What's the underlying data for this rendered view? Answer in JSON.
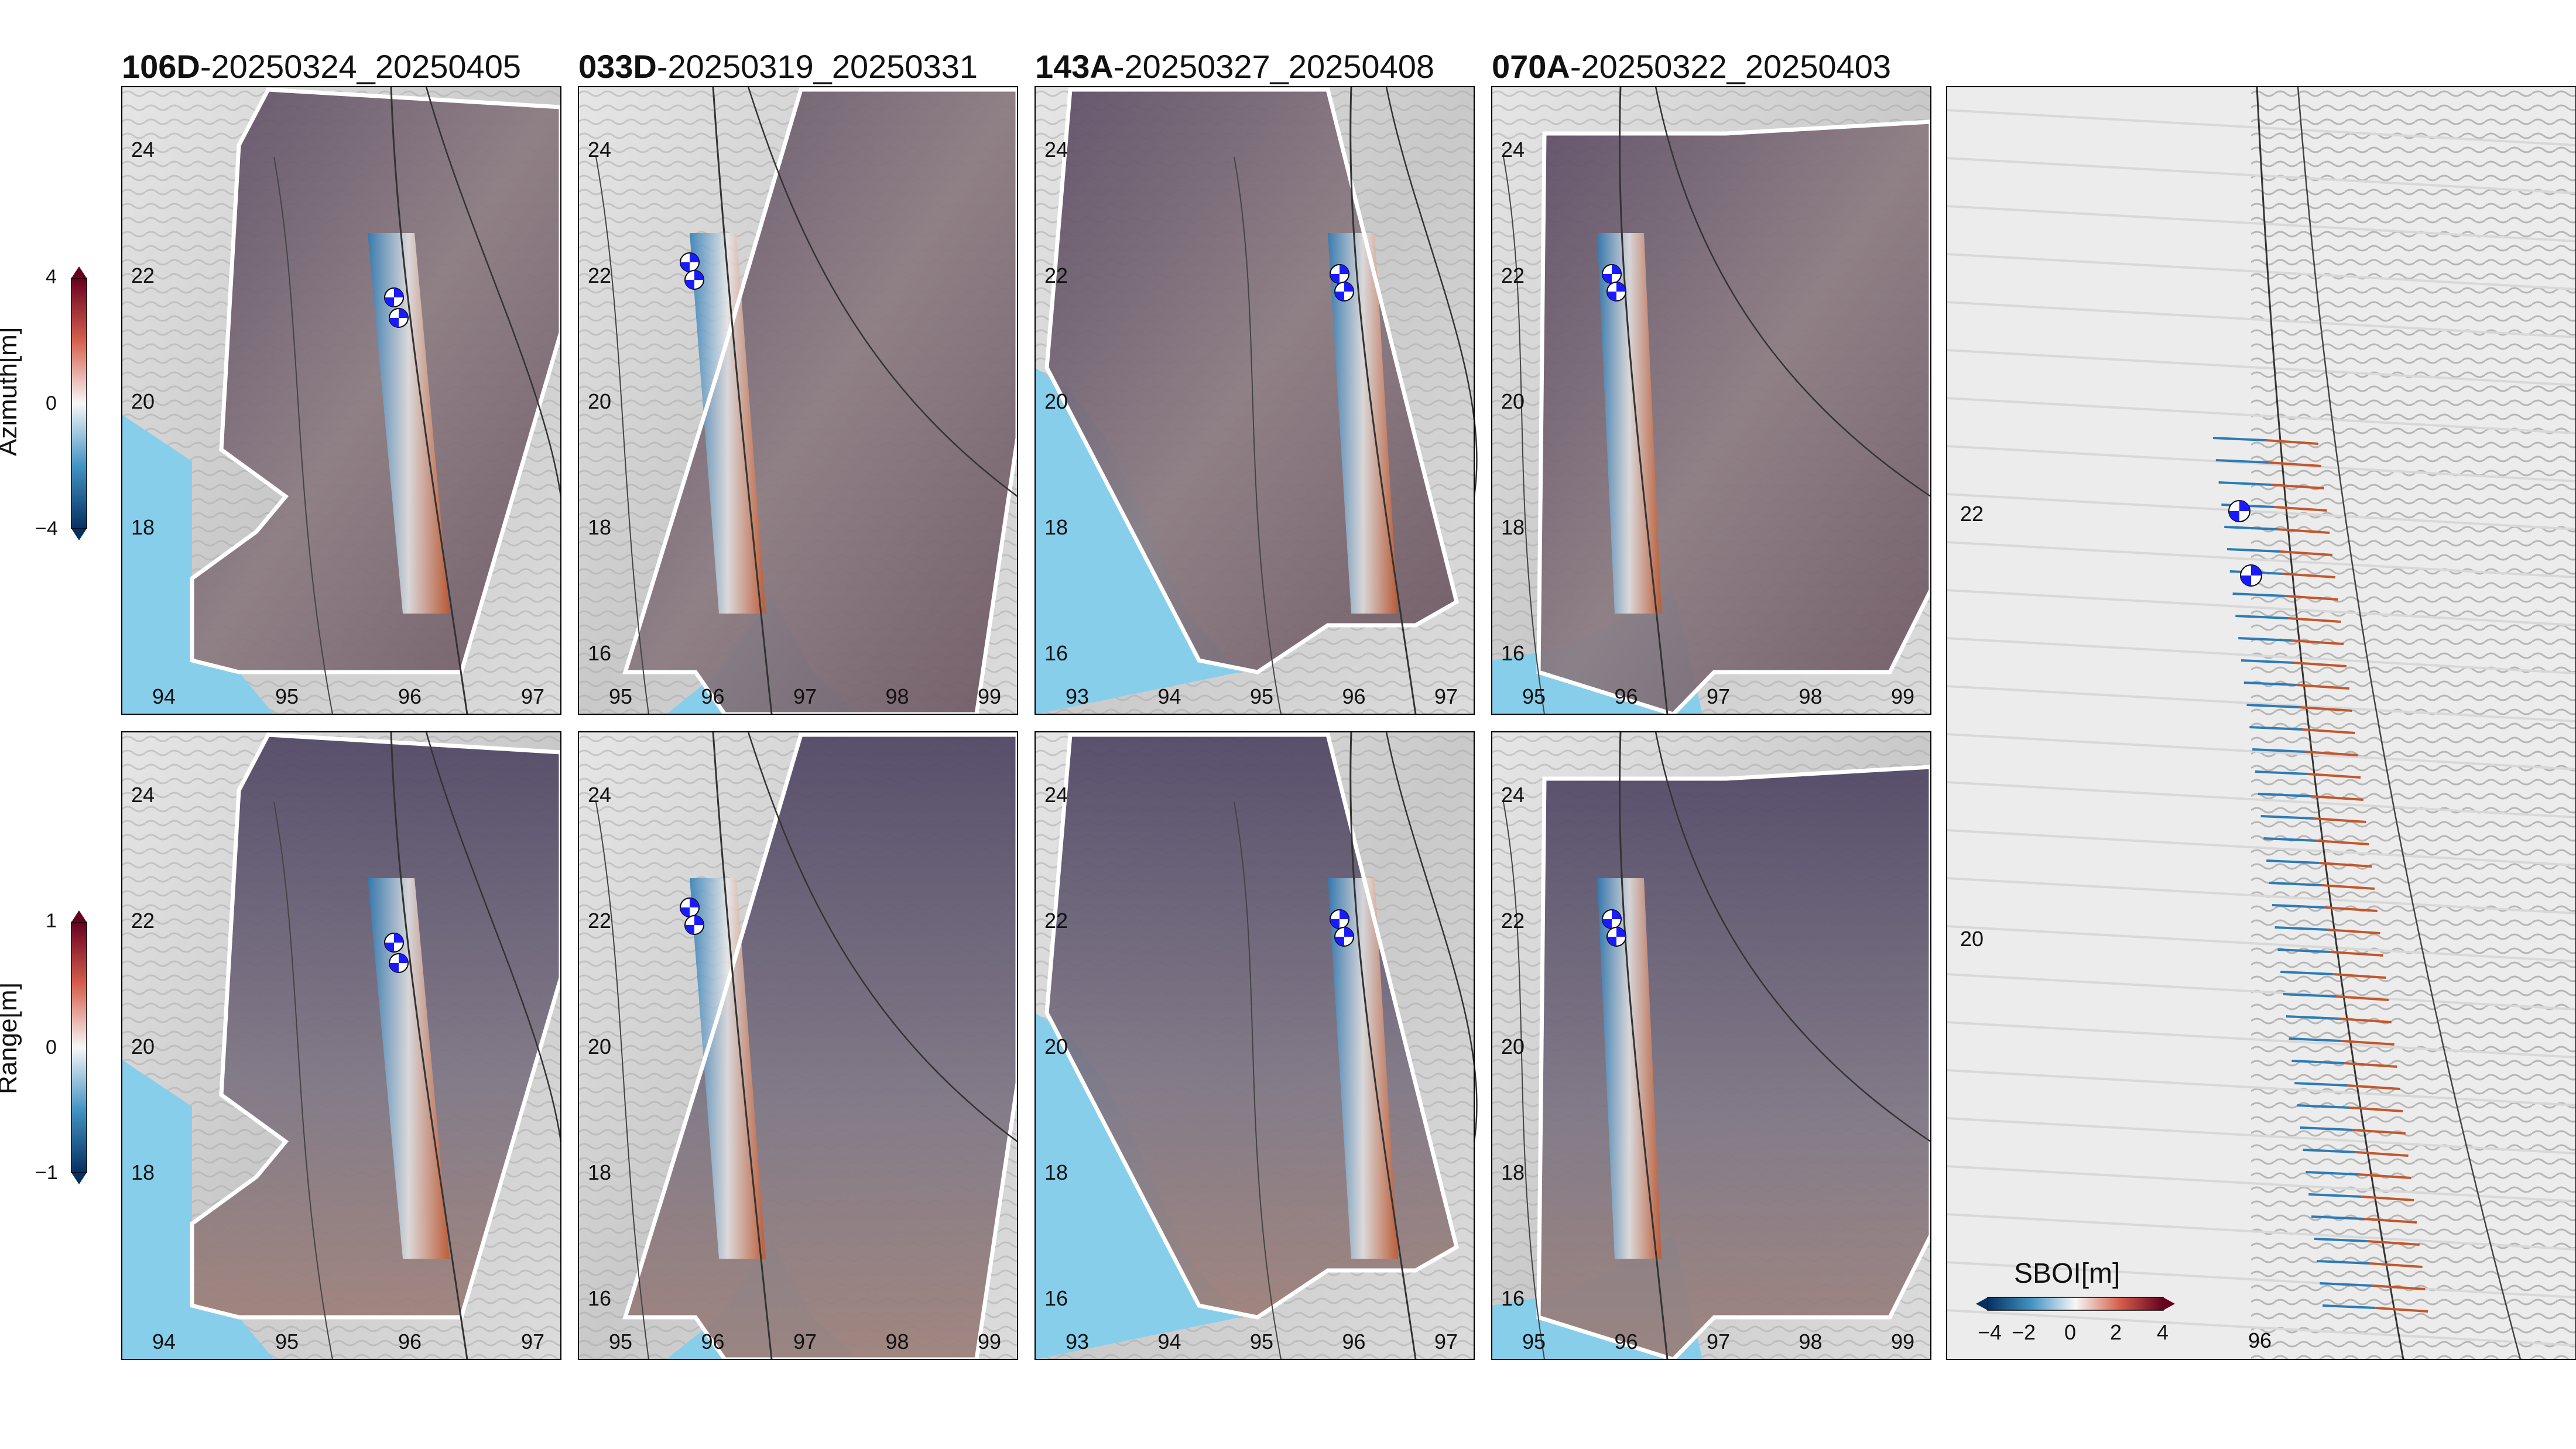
{
  "panels": [
    {
      "track": "106D",
      "dates": "-20250324_20250405",
      "xticks": [
        "94",
        "95",
        "96",
        "97"
      ],
      "yticks": [
        "24",
        "22",
        "20",
        "18"
      ]
    },
    {
      "track": "033D",
      "dates": "-20250319_20250331",
      "xticks": [
        "95",
        "96",
        "97",
        "98",
        "99"
      ],
      "yticks": [
        "24",
        "22",
        "20",
        "18",
        "16"
      ]
    },
    {
      "track": "143A",
      "dates": "-20250327_20250408",
      "xticks": [
        "93",
        "94",
        "95",
        "96",
        "97"
      ],
      "yticks": [
        "24",
        "22",
        "20",
        "18",
        "16"
      ]
    },
    {
      "track": "070A",
      "dates": "-20250322_20250403",
      "xticks": [
        "95",
        "96",
        "97",
        "98",
        "99"
      ],
      "yticks": [
        "24",
        "22",
        "20",
        "18",
        "16"
      ]
    }
  ],
  "colorbars": {
    "azimuth": {
      "label": "Azimuth[m]",
      "ticks": [
        "4",
        "0",
        "−4"
      ]
    },
    "range": {
      "label": "Range[m]",
      "ticks": [
        "1",
        "0",
        "−1"
      ]
    },
    "sboi": {
      "label": "SBOI[m]",
      "ticks": [
        "−4",
        "−2",
        "0",
        "2",
        "4"
      ]
    }
  },
  "right_panel": {
    "yticks": [
      "22",
      "20"
    ],
    "xticks": [
      "96"
    ]
  },
  "colors": {
    "sea": "#87ceeb",
    "negative": "#08306b",
    "positive": "#67001f",
    "beachball": "#1a1aff"
  }
}
